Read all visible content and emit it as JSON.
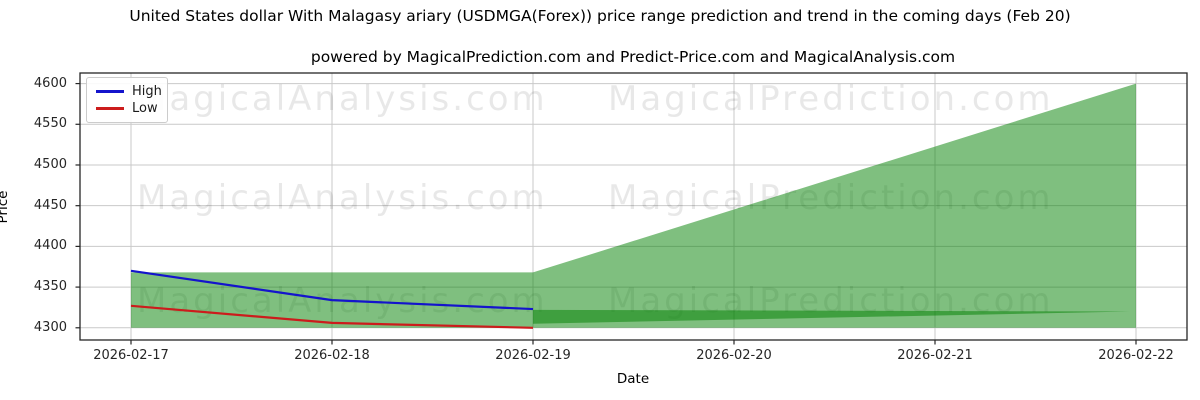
{
  "figure": {
    "title": "United States dollar With Malagasy ariary (USDMGA(Forex)) price range prediction and trend in the coming days (Feb 20)",
    "subtitle": "powered by MagicalPrediction.com and Predict-Price.com and MagicalAnalysis.com"
  },
  "chart_data": {
    "type": "line",
    "xlabel": "Date",
    "ylabel": "Price",
    "x_ticks": [
      "2026-02-17",
      "2026-02-18",
      "2026-02-19",
      "2026-02-20",
      "2026-02-21",
      "2026-02-22"
    ],
    "y_ticks": [
      4300,
      4350,
      4400,
      4450,
      4500,
      4550,
      4600
    ],
    "ylim": [
      4285,
      4613
    ],
    "grid": true,
    "legend_position": "upper-left",
    "series": [
      {
        "name": "High",
        "color": "#1414cc",
        "dates": [
          "2026-02-17",
          "2026-02-18",
          "2026-02-19"
        ],
        "x_days": [
          0,
          1,
          2
        ],
        "values": [
          4370,
          4334,
          4323
        ]
      },
      {
        "name": "Low",
        "color": "#cc1c1c",
        "dates": [
          "2026-02-17",
          "2026-02-18",
          "2026-02-19"
        ],
        "x_days": [
          0,
          1,
          2
        ],
        "values": [
          4327,
          4306,
          4300
        ]
      }
    ],
    "bands": [
      {
        "name": "observed-range",
        "x_days": [
          0,
          2
        ],
        "upper": [
          4368,
          4368
        ],
        "lower": [
          4300,
          4300
        ]
      },
      {
        "name": "forecast-range",
        "x_days": [
          2,
          5
        ],
        "upper": [
          4368,
          4600
        ],
        "lower": [
          4300,
          4300
        ]
      },
      {
        "name": "forecast-trend",
        "x_days": [
          2,
          4.97
        ],
        "upper": [
          4322,
          4320
        ],
        "lower": [
          4305,
          4320
        ]
      }
    ],
    "band_fill": "rgba(0,128,0,0.5)",
    "watermarks": [
      "MagicalAnalysis.com",
      "MagicalPrediction.com"
    ],
    "colors": {
      "grid": "#c9c9c9",
      "frame": "#262626",
      "tick": "#262626",
      "watermark": "rgba(0,0,0,0.09)"
    }
  }
}
